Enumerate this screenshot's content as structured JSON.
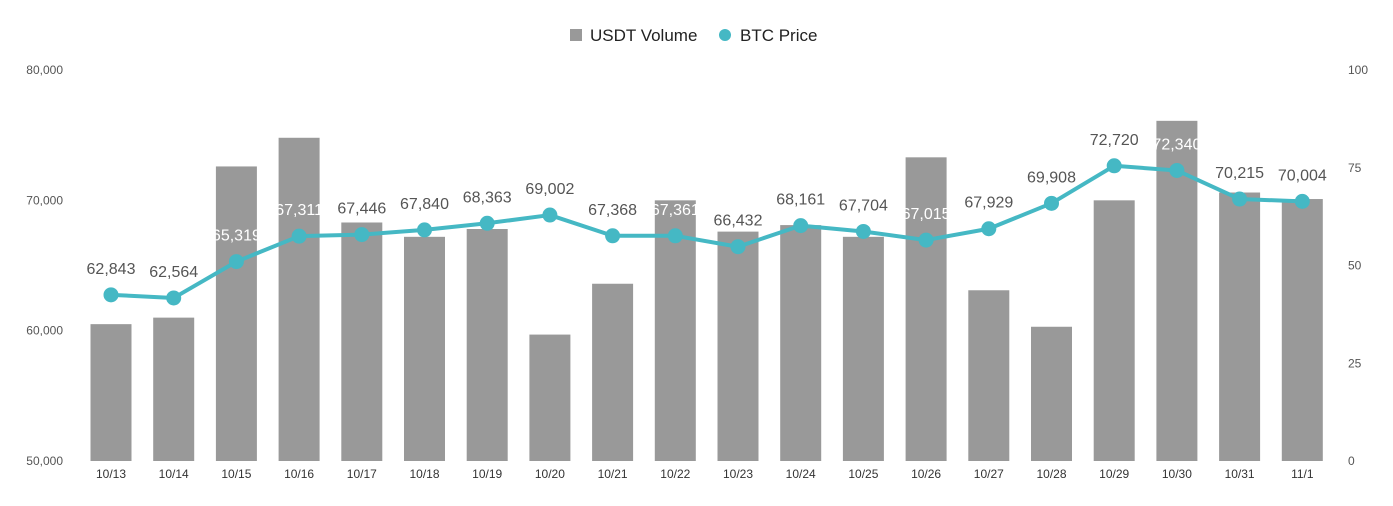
{
  "chart_data": {
    "type": "bar",
    "categories": [
      "10/13",
      "10/14",
      "10/15",
      "10/16",
      "10/17",
      "10/18",
      "10/19",
      "10/20",
      "10/21",
      "10/22",
      "10/23",
      "10/24",
      "10/25",
      "10/26",
      "10/27",
      "10/28",
      "10/29",
      "10/30",
      "10/31",
      "11/1"
    ],
    "series": [
      {
        "name": "USDT Volume",
        "type": "bar",
        "axis": "left",
        "color": "#999999",
        "values": [
          60500,
          61000,
          72600,
          74800,
          68300,
          67200,
          67800,
          59700,
          63600,
          70000,
          67600,
          68100,
          67200,
          73300,
          63100,
          60300,
          70000,
          76100,
          70600,
          70100
        ]
      },
      {
        "name": "BTC Price",
        "type": "line",
        "axis": "right",
        "color": "#45B8C4",
        "values": [
          42.5,
          41.7,
          51.0,
          57.5,
          57.9,
          59.1,
          60.8,
          62.9,
          57.6,
          57.6,
          54.8,
          60.2,
          58.7,
          56.5,
          59.4,
          65.9,
          75.5,
          74.3,
          67.0,
          66.4
        ],
        "data_labels": [
          "62,843",
          "62,564",
          "65,319",
          "67,311",
          "67,446",
          "67,840",
          "68,363",
          "69,002",
          "67,368",
          "67,361",
          "66,432",
          "68,161",
          "67,704",
          "67,015",
          "67,929",
          "69,908",
          "72,720",
          "72,340",
          "70,215",
          "70,004"
        ]
      }
    ],
    "y_left": {
      "min": 50000,
      "max": 80000,
      "ticks": [
        "50,000",
        "60,000",
        "70,000",
        "80,000"
      ],
      "tick_values": [
        50000,
        60000,
        70000,
        80000
      ]
    },
    "y_right": {
      "min": 0,
      "max": 100,
      "ticks": [
        "0",
        "25",
        "50",
        "75",
        "100"
      ],
      "tick_values": [
        0,
        25,
        50,
        75,
        100
      ]
    },
    "title": "",
    "xlabel": "",
    "ylabel": "",
    "grid": false,
    "legend_position": "top-center"
  }
}
